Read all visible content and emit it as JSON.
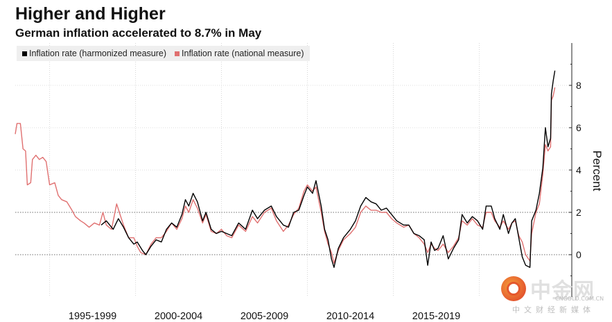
{
  "header": {
    "title": "Higher and Higher",
    "subtitle": "German inflation accelerated to 8.7% in May"
  },
  "watermark": {
    "brand_cn": "中金网",
    "domain": "CNGOLD.COM.CN",
    "tagline": "中文财经新媒体"
  },
  "chart_data": {
    "type": "line",
    "title": "Higher and Higher",
    "subtitle": "German inflation accelerated to 8.7% in May",
    "ylabel": "Percent",
    "xlabel": "",
    "ylim": [
      -2,
      9.5
    ],
    "xlim": [
      1991.0,
      2022.7
    ],
    "y_ticks": [
      0,
      2,
      4,
      6,
      8
    ],
    "y_axis_side": "right",
    "reference_lines": [
      0,
      2
    ],
    "x_tick_labels": [
      "1995-1999",
      "2000-2004",
      "2005-2009",
      "2010-2014",
      "2015-2019"
    ],
    "x_bands": [
      [
        1993.0,
        1998.0
      ],
      [
        1998.0,
        2003.0
      ],
      [
        2003.0,
        2008.0
      ],
      [
        2008.0,
        2013.0
      ],
      [
        2013.0,
        2018.0
      ]
    ],
    "legend_position": "top-left",
    "series": [
      {
        "name": "Inflation rate (harmonized measure)",
        "color": "#000000",
        "points": [
          [
            1996.0,
            1.4
          ],
          [
            1996.3,
            1.6
          ],
          [
            1996.7,
            1.2
          ],
          [
            1997.0,
            1.7
          ],
          [
            1997.3,
            1.3
          ],
          [
            1997.6,
            0.8
          ],
          [
            1997.9,
            0.5
          ],
          [
            1998.1,
            0.6
          ],
          [
            1998.4,
            0.2
          ],
          [
            1998.6,
            0.0
          ],
          [
            1998.9,
            0.4
          ],
          [
            1999.2,
            0.7
          ],
          [
            1999.5,
            0.6
          ],
          [
            1999.8,
            1.2
          ],
          [
            2000.1,
            1.5
          ],
          [
            2000.4,
            1.3
          ],
          [
            2000.7,
            1.9
          ],
          [
            2000.9,
            2.6
          ],
          [
            2001.1,
            2.3
          ],
          [
            2001.35,
            2.9
          ],
          [
            2001.6,
            2.5
          ],
          [
            2001.9,
            1.6
          ],
          [
            2002.1,
            2.0
          ],
          [
            2002.4,
            1.2
          ],
          [
            2002.7,
            1.0
          ],
          [
            2003.0,
            1.1
          ],
          [
            2003.3,
            1.0
          ],
          [
            2003.6,
            0.9
          ],
          [
            2004.0,
            1.5
          ],
          [
            2004.4,
            1.2
          ],
          [
            2004.8,
            2.1
          ],
          [
            2005.1,
            1.7
          ],
          [
            2005.5,
            2.1
          ],
          [
            2005.9,
            2.3
          ],
          [
            2006.2,
            1.8
          ],
          [
            2006.6,
            1.4
          ],
          [
            2006.9,
            1.3
          ],
          [
            2007.2,
            2.0
          ],
          [
            2007.5,
            2.1
          ],
          [
            2007.8,
            2.8
          ],
          [
            2008.0,
            3.2
          ],
          [
            2008.3,
            2.9
          ],
          [
            2008.5,
            3.5
          ],
          [
            2008.8,
            2.3
          ],
          [
            2009.0,
            1.2
          ],
          [
            2009.2,
            0.7
          ],
          [
            2009.4,
            -0.2
          ],
          [
            2009.55,
            -0.6
          ],
          [
            2009.8,
            0.3
          ],
          [
            2010.1,
            0.8
          ],
          [
            2010.5,
            1.2
          ],
          [
            2010.8,
            1.6
          ],
          [
            2011.1,
            2.3
          ],
          [
            2011.4,
            2.7
          ],
          [
            2011.7,
            2.5
          ],
          [
            2012.0,
            2.4
          ],
          [
            2012.3,
            2.1
          ],
          [
            2012.6,
            2.2
          ],
          [
            2012.9,
            1.9
          ],
          [
            2013.2,
            1.6
          ],
          [
            2013.6,
            1.4
          ],
          [
            2013.9,
            1.4
          ],
          [
            2014.2,
            1.0
          ],
          [
            2014.5,
            0.9
          ],
          [
            2014.8,
            0.7
          ],
          [
            2015.0,
            -0.5
          ],
          [
            2015.2,
            0.6
          ],
          [
            2015.4,
            0.2
          ],
          [
            2015.6,
            0.3
          ],
          [
            2015.9,
            0.9
          ],
          [
            2016.2,
            -0.2
          ],
          [
            2016.5,
            0.3
          ],
          [
            2016.8,
            0.7
          ],
          [
            2017.0,
            1.9
          ],
          [
            2017.3,
            1.5
          ],
          [
            2017.6,
            1.8
          ],
          [
            2017.9,
            1.6
          ],
          [
            2018.2,
            1.2
          ],
          [
            2018.4,
            2.3
          ],
          [
            2018.7,
            2.3
          ],
          [
            2018.9,
            1.7
          ],
          [
            2019.2,
            1.2
          ],
          [
            2019.4,
            1.9
          ],
          [
            2019.7,
            1.0
          ],
          [
            2019.9,
            1.5
          ],
          [
            2020.1,
            1.7
          ],
          [
            2020.3,
            0.8
          ],
          [
            2020.5,
            -0.1
          ],
          [
            2020.7,
            -0.5
          ],
          [
            2020.95,
            -0.6
          ],
          [
            2021.05,
            1.6
          ],
          [
            2021.3,
            2.1
          ],
          [
            2021.5,
            2.9
          ],
          [
            2021.7,
            4.1
          ],
          [
            2021.85,
            6.0
          ],
          [
            2022.0,
            5.1
          ],
          [
            2022.15,
            5.5
          ],
          [
            2022.2,
            7.6
          ],
          [
            2022.3,
            8.2
          ],
          [
            2022.4,
            8.7
          ]
        ]
      },
      {
        "name": "Inflation rate (national measure)",
        "color": "#e07070",
        "points": [
          [
            1991.0,
            5.7
          ],
          [
            1991.1,
            6.2
          ],
          [
            1991.3,
            6.2
          ],
          [
            1991.45,
            5.0
          ],
          [
            1991.6,
            4.9
          ],
          [
            1991.7,
            3.3
          ],
          [
            1991.9,
            3.4
          ],
          [
            1992.0,
            4.5
          ],
          [
            1992.2,
            4.7
          ],
          [
            1992.4,
            4.5
          ],
          [
            1992.6,
            4.6
          ],
          [
            1992.8,
            4.4
          ],
          [
            1993.0,
            3.3
          ],
          [
            1993.3,
            3.4
          ],
          [
            1993.5,
            2.8
          ],
          [
            1993.7,
            2.6
          ],
          [
            1994.0,
            2.5
          ],
          [
            1994.3,
            2.1
          ],
          [
            1994.5,
            1.8
          ],
          [
            1994.8,
            1.6
          ],
          [
            1995.0,
            1.5
          ],
          [
            1995.3,
            1.3
          ],
          [
            1995.6,
            1.5
          ],
          [
            1995.9,
            1.4
          ],
          [
            1996.1,
            2.0
          ],
          [
            1996.3,
            1.4
          ],
          [
            1996.6,
            1.2
          ],
          [
            1996.9,
            2.4
          ],
          [
            1997.1,
            1.9
          ],
          [
            1997.3,
            1.4
          ],
          [
            1997.6,
            0.8
          ],
          [
            1997.9,
            0.8
          ],
          [
            1998.1,
            0.4
          ],
          [
            1998.3,
            0.1
          ],
          [
            1998.6,
            0.0
          ],
          [
            1998.9,
            0.5
          ],
          [
            1999.2,
            0.8
          ],
          [
            1999.5,
            0.8
          ],
          [
            1999.8,
            1.1
          ],
          [
            2000.1,
            1.5
          ],
          [
            2000.4,
            1.2
          ],
          [
            2000.7,
            1.7
          ],
          [
            2000.9,
            2.3
          ],
          [
            2001.1,
            2.0
          ],
          [
            2001.35,
            2.6
          ],
          [
            2001.6,
            2.2
          ],
          [
            2001.9,
            1.5
          ],
          [
            2002.1,
            1.9
          ],
          [
            2002.4,
            1.1
          ],
          [
            2002.7,
            1.0
          ],
          [
            2003.0,
            1.2
          ],
          [
            2003.3,
            0.9
          ],
          [
            2003.6,
            0.8
          ],
          [
            2004.0,
            1.4
          ],
          [
            2004.4,
            1.1
          ],
          [
            2004.8,
            1.8
          ],
          [
            2005.1,
            1.5
          ],
          [
            2005.5,
            2.0
          ],
          [
            2005.9,
            2.2
          ],
          [
            2006.2,
            1.6
          ],
          [
            2006.6,
            1.1
          ],
          [
            2006.9,
            1.4
          ],
          [
            2007.2,
            1.9
          ],
          [
            2007.5,
            2.2
          ],
          [
            2007.8,
            3.0
          ],
          [
            2008.0,
            3.3
          ],
          [
            2008.3,
            3.0
          ],
          [
            2008.5,
            3.2
          ],
          [
            2008.8,
            2.0
          ],
          [
            2009.0,
            1.1
          ],
          [
            2009.2,
            0.5
          ],
          [
            2009.4,
            0.1
          ],
          [
            2009.55,
            -0.4
          ],
          [
            2009.8,
            0.2
          ],
          [
            2010.1,
            0.7
          ],
          [
            2010.5,
            1.0
          ],
          [
            2010.8,
            1.3
          ],
          [
            2011.1,
            2.0
          ],
          [
            2011.4,
            2.3
          ],
          [
            2011.7,
            2.1
          ],
          [
            2012.0,
            2.1
          ],
          [
            2012.3,
            2.0
          ],
          [
            2012.6,
            2.0
          ],
          [
            2012.9,
            1.7
          ],
          [
            2013.2,
            1.5
          ],
          [
            2013.6,
            1.3
          ],
          [
            2013.9,
            1.4
          ],
          [
            2014.2,
            1.0
          ],
          [
            2014.5,
            0.8
          ],
          [
            2014.8,
            0.5
          ],
          [
            2015.0,
            0.1
          ],
          [
            2015.2,
            0.5
          ],
          [
            2015.4,
            0.3
          ],
          [
            2015.6,
            0.2
          ],
          [
            2015.9,
            0.5
          ],
          [
            2016.2,
            0.1
          ],
          [
            2016.5,
            0.4
          ],
          [
            2016.8,
            0.8
          ],
          [
            2017.0,
            1.6
          ],
          [
            2017.3,
            1.4
          ],
          [
            2017.6,
            1.7
          ],
          [
            2017.9,
            1.4
          ],
          [
            2018.2,
            1.3
          ],
          [
            2018.4,
            2.0
          ],
          [
            2018.7,
            2.0
          ],
          [
            2018.9,
            1.6
          ],
          [
            2019.2,
            1.3
          ],
          [
            2019.4,
            1.6
          ],
          [
            2019.7,
            1.2
          ],
          [
            2019.9,
            1.5
          ],
          [
            2020.1,
            1.6
          ],
          [
            2020.3,
            0.9
          ],
          [
            2020.5,
            0.6
          ],
          [
            2020.7,
            0.0
          ],
          [
            2020.95,
            -0.3
          ],
          [
            2021.05,
            1.0
          ],
          [
            2021.3,
            2.0
          ],
          [
            2021.5,
            2.4
          ],
          [
            2021.7,
            3.8
          ],
          [
            2021.85,
            5.2
          ],
          [
            2022.0,
            4.9
          ],
          [
            2022.15,
            5.1
          ],
          [
            2022.2,
            7.3
          ],
          [
            2022.3,
            7.5
          ],
          [
            2022.4,
            7.9
          ]
        ]
      }
    ]
  }
}
